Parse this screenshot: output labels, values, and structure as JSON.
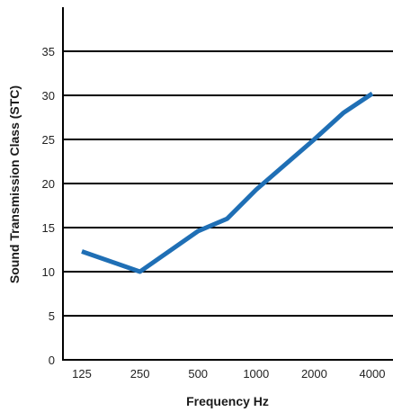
{
  "chart_data": {
    "type": "line",
    "title": "",
    "xlabel": "Frequency Hz",
    "ylabel": "Sound Transmission Class (STC)",
    "categories": [
      "125",
      "250",
      "500",
      "1000",
      "2000",
      "4000"
    ],
    "yticks": [
      "0",
      "5",
      "10",
      "15",
      "20",
      "25",
      "30",
      "35"
    ],
    "ylim": [
      0,
      40
    ],
    "grid": true,
    "legend": "none",
    "series": [
      {
        "color": "#1f6fb5",
        "points": [
          {
            "x": 125,
            "y": 12.3
          },
          {
            "x": 250,
            "y": 10.0
          },
          {
            "x": 500,
            "y": 14.6
          },
          {
            "x": 707,
            "y": 16.0
          },
          {
            "x": 1000,
            "y": 19.3
          },
          {
            "x": 2000,
            "y": 25.0
          },
          {
            "x": 2828,
            "y": 28.0
          },
          {
            "x": 4000,
            "y": 30.2
          }
        ]
      }
    ]
  }
}
